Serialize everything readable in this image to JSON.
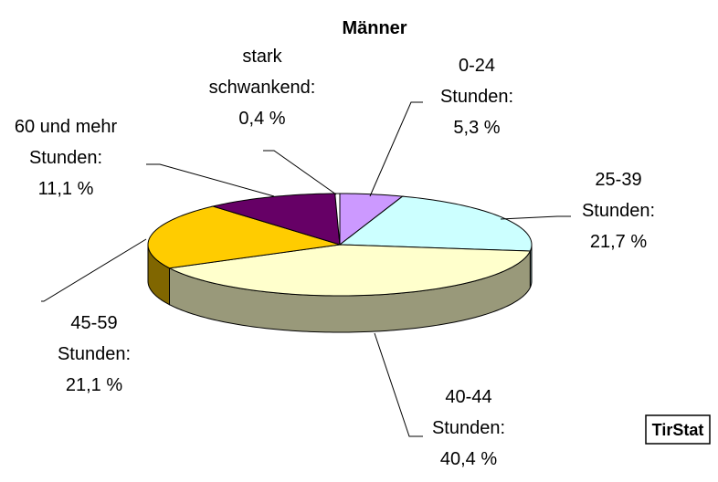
{
  "chart_data": {
    "type": "pie3d",
    "title": "Männer",
    "categories": [
      [
        "0-24",
        "Stunden:"
      ],
      [
        "25-39",
        "Stunden:"
      ],
      [
        "40-44",
        "Stunden:"
      ],
      [
        "45-59",
        "Stunden:"
      ],
      [
        "60 und mehr",
        "Stunden:"
      ],
      [
        "stark",
        "schwankend:"
      ]
    ],
    "values": [
      5.3,
      21.7,
      40.4,
      21.1,
      11.1,
      0.4
    ],
    "value_labels": [
      "5,3 %",
      "21,7 %",
      "40,4 %",
      "21,1 %",
      "11,1 %",
      "0,4 %"
    ],
    "colors": [
      "#cc99ff",
      "#ccffff",
      "#ffffcc",
      "#ffcc00",
      "#660066",
      "#ffffff"
    ],
    "side_colors": [
      "#7a5c99",
      "#7a9999",
      "#99997a",
      "#806600",
      "#330033",
      "#999999"
    ],
    "source": "TirStat"
  }
}
